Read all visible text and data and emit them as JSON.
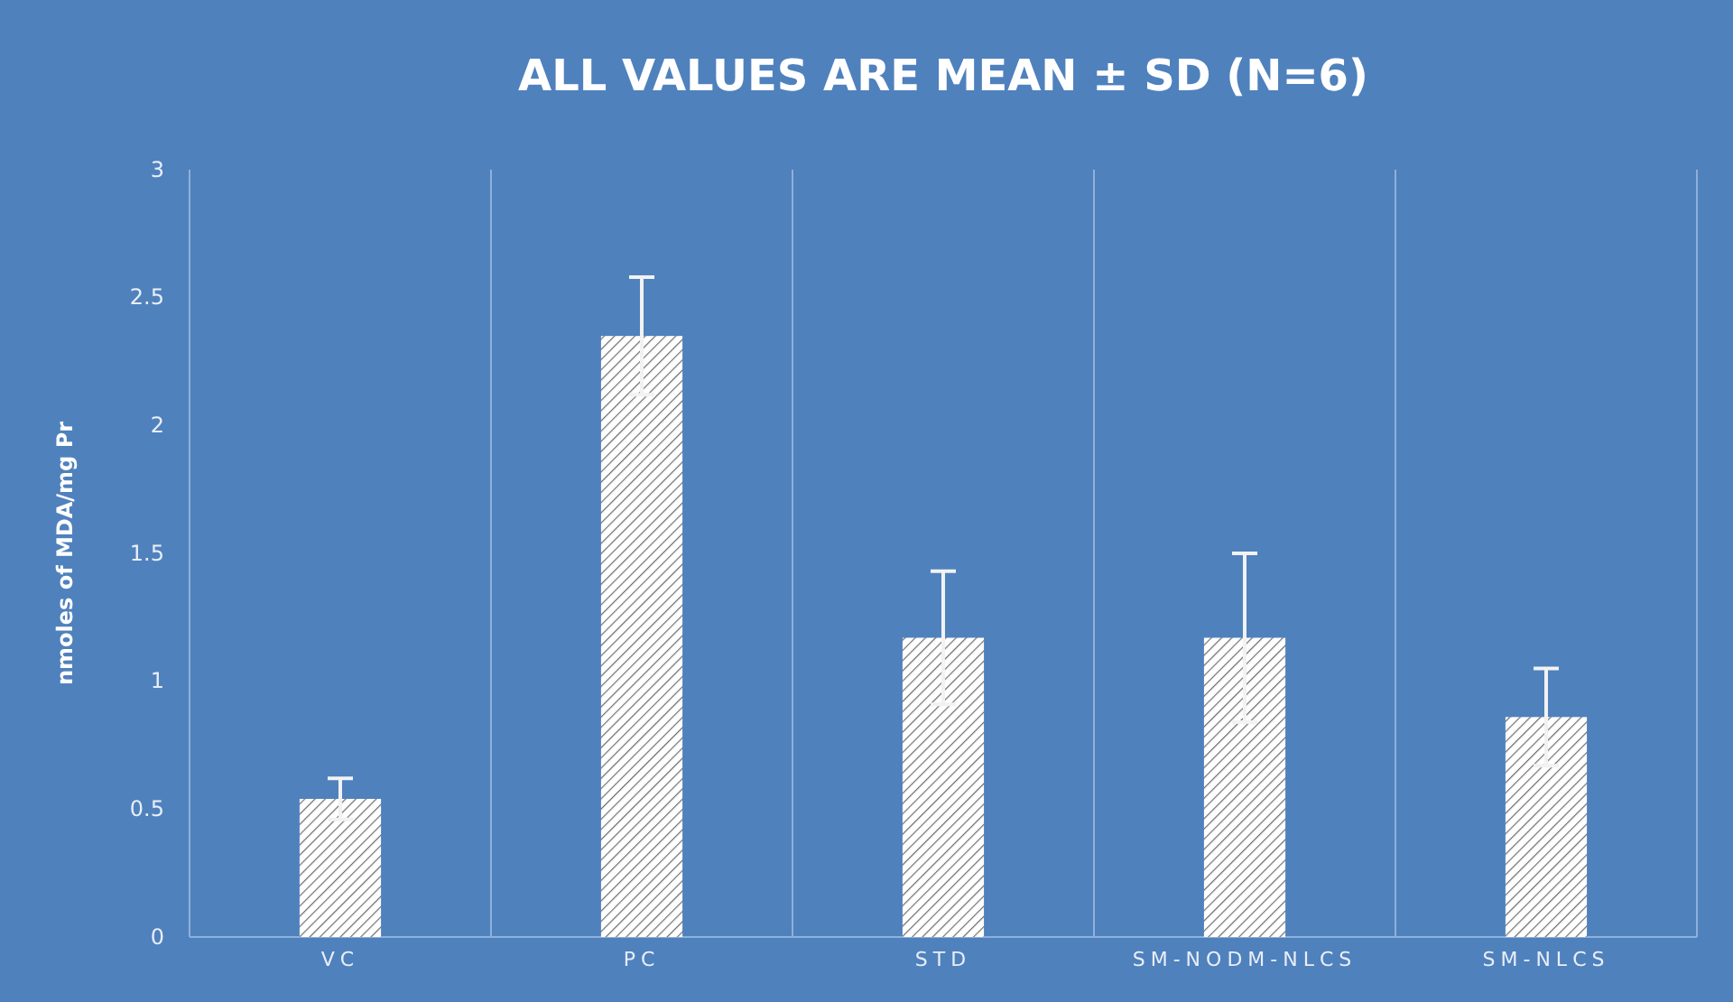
{
  "chart_data": {
    "type": "bar",
    "title": "ALL VALUES ARE MEAN ± SD (N=6)",
    "ylabel": "nmoles of MDA/mg Pr",
    "categories": [
      "VC",
      "PC",
      "STD",
      "SM-NODM-NLCS",
      "SM-NLCS"
    ],
    "values": [
      0.54,
      2.35,
      1.17,
      1.17,
      0.86
    ],
    "errors": [
      0.08,
      0.23,
      0.26,
      0.33,
      0.19
    ],
    "color": "#ffffff",
    "ylim": [
      0,
      3
    ],
    "yticks": [
      0,
      0.5,
      1,
      1.5,
      2,
      2.5,
      3
    ],
    "grid": "x"
  }
}
